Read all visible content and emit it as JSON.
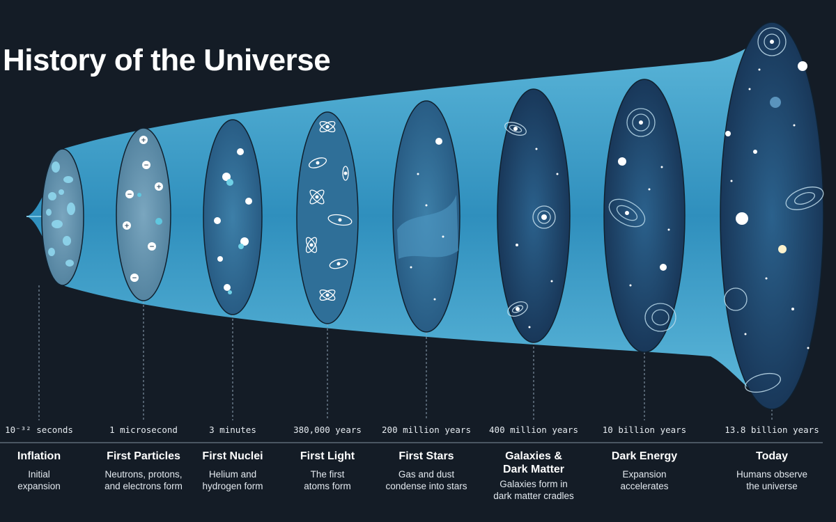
{
  "title": "History of the Universe",
  "colors": {
    "background": "#141c26",
    "cone": "#3f9ec7",
    "cone_highlight": "#5cb8da",
    "slice_dark": "#163a5c",
    "slice_mid": "#2f6f98"
  },
  "eras": [
    {
      "time": "10⁻³² seconds",
      "name": "Inflation",
      "desc": "Initial\nexpansion"
    },
    {
      "time": "1 microsecond",
      "name": "First Particles",
      "desc": "Neutrons, protons,\nand electrons form"
    },
    {
      "time": "3 minutes",
      "name": "First Nuclei",
      "desc": "Helium and\nhydrogen form"
    },
    {
      "time": "380,000 years",
      "name": "First Light",
      "desc": "The first\natoms form"
    },
    {
      "time": "200 million years",
      "name": "First Stars",
      "desc": "Gas and dust\ncondense into stars"
    },
    {
      "time": "400 million years",
      "name": "Galaxies &\nDark Matter",
      "desc": "Galaxies form in\ndark matter cradles"
    },
    {
      "time": "10 billion years",
      "name": "Dark Energy",
      "desc": "Expansion\naccelerates"
    },
    {
      "time": "13.8 billion years",
      "name": "Today",
      "desc": "Humans observe\nthe universe"
    }
  ]
}
